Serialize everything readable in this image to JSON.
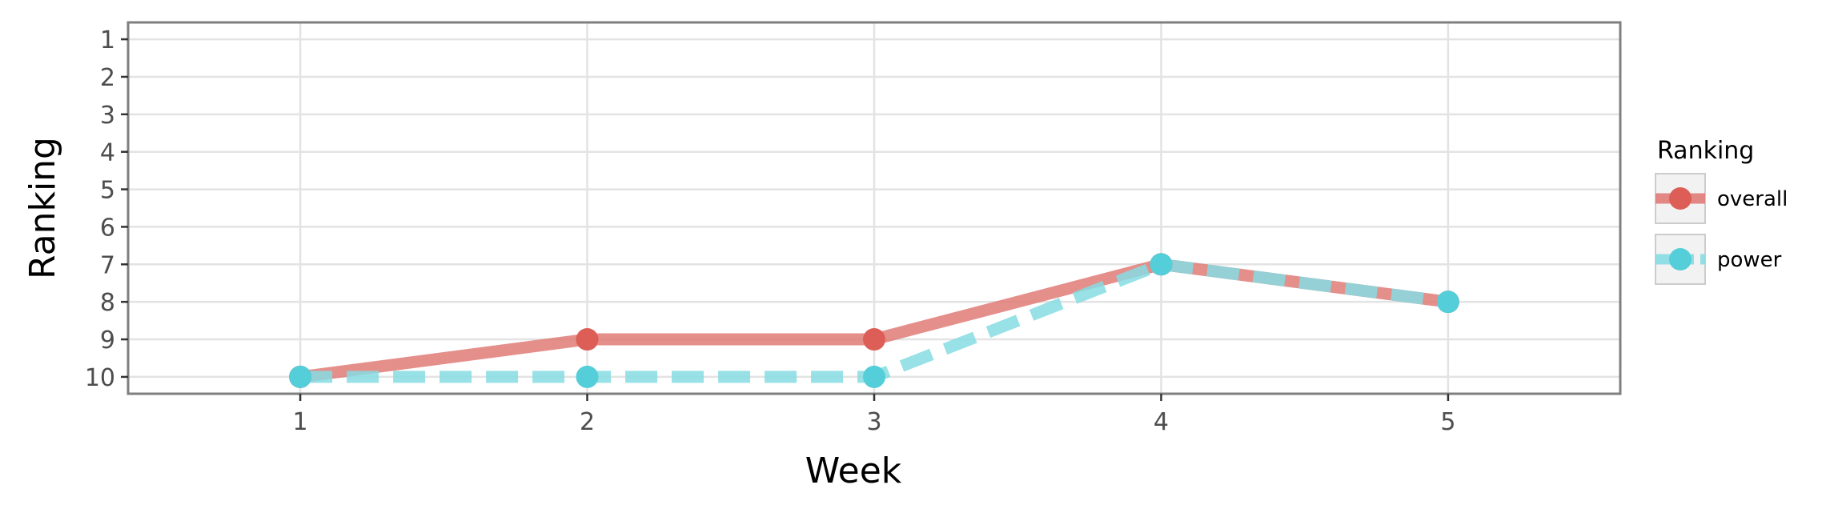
{
  "chart_data": {
    "type": "line",
    "x": [
      1,
      2,
      3,
      4,
      5
    ],
    "xlabel": "Week",
    "ylabel": "Ranking",
    "xlim": [
      0.4,
      5.6
    ],
    "ylim": [
      10.45,
      0.55
    ],
    "y_reversed": true,
    "x_ticks": [
      1,
      2,
      3,
      4,
      5
    ],
    "y_ticks": [
      1,
      2,
      3,
      4,
      5,
      6,
      7,
      8,
      9,
      10
    ],
    "grid": true,
    "legend": {
      "title": "Ranking",
      "placement": "right"
    },
    "series": [
      {
        "name": "overall",
        "values": [
          10,
          9,
          9,
          7,
          8
        ],
        "color": "#e07b77",
        "point_color": "#dc5e57",
        "linestyle": "solid"
      },
      {
        "name": "power",
        "values": [
          10,
          10,
          10,
          7,
          8
        ],
        "color": "#86dce2",
        "point_color": "#54ced8",
        "linestyle": "dashed"
      }
    ]
  }
}
